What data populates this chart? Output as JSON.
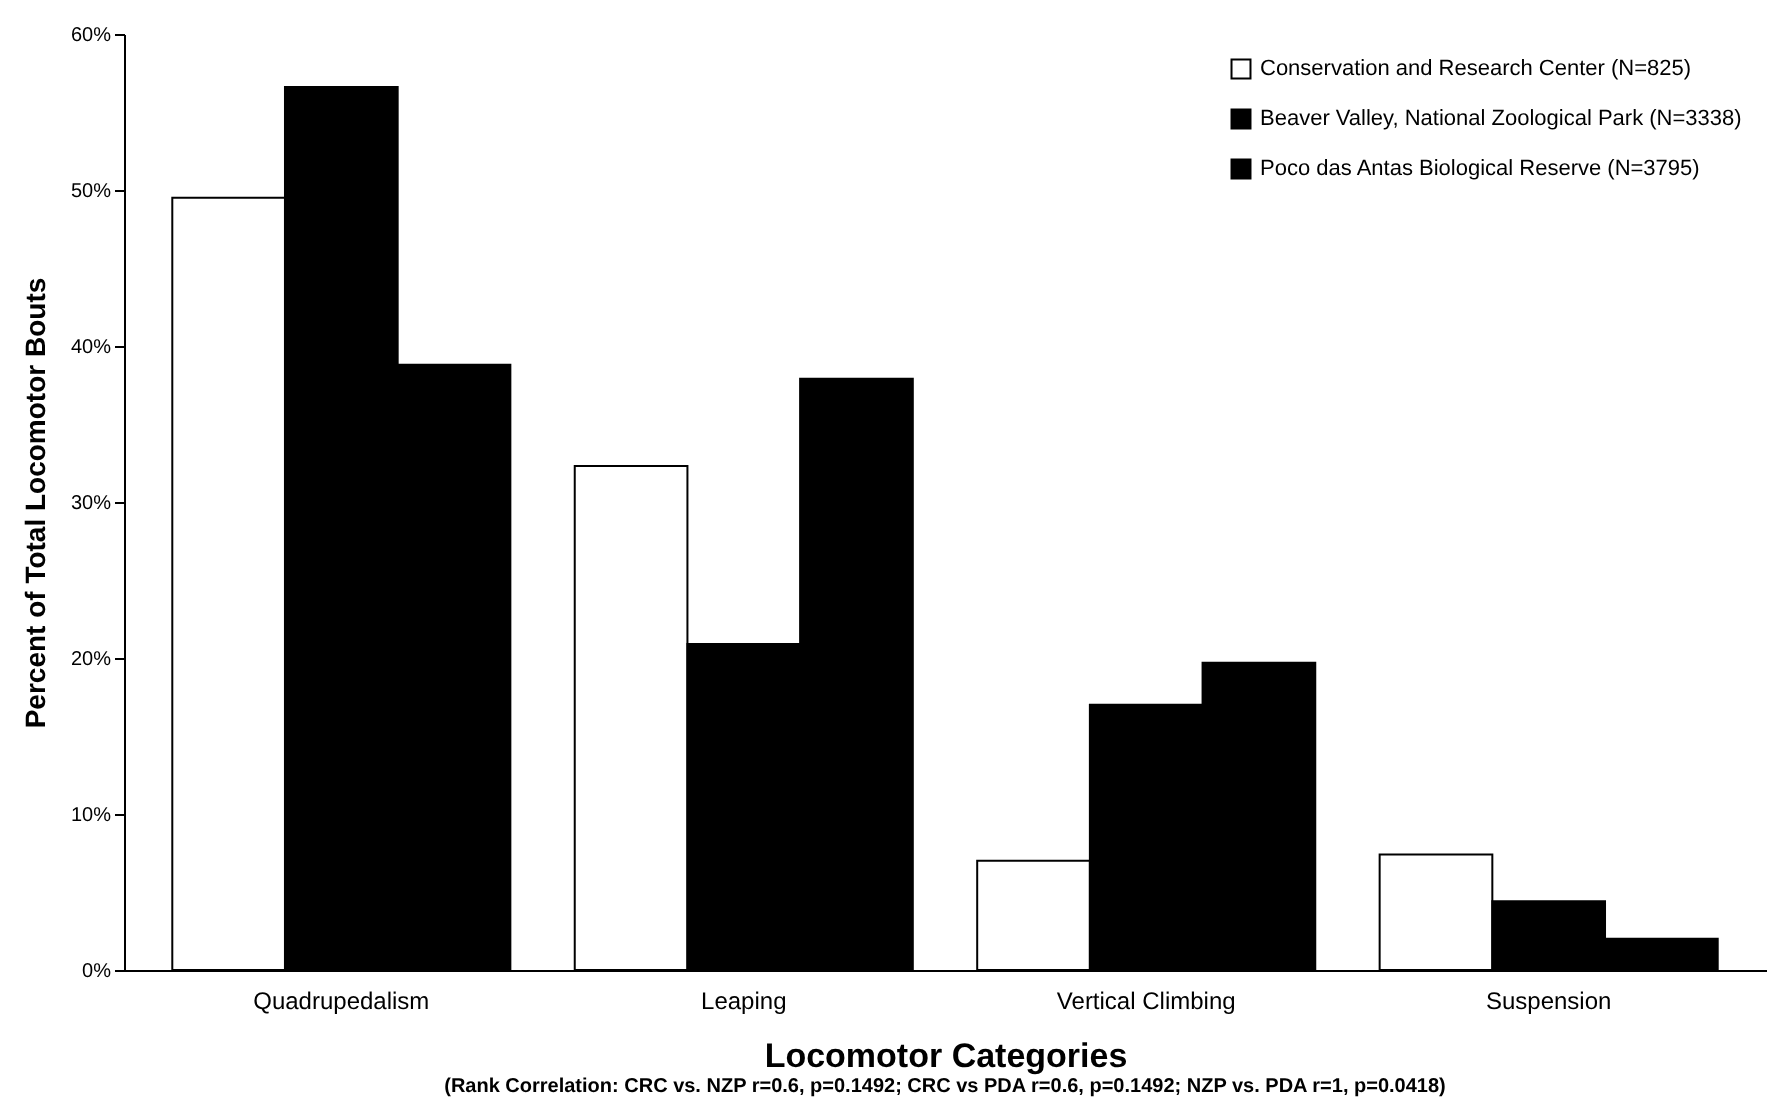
{
  "chart_data": {
    "type": "bar",
    "xlabel": "Locomotor Categories",
    "ylabel": "Percent of Total Locomotor Bouts",
    "annotations": [
      "(Rank Correlation: CRC vs. NZP r=0.6, p=0.1492; CRC vs  PDA r=0.6, p=0.1492; NZP vs. PDA r=1, p=0.0418)"
    ],
    "categories": [
      "Quadrupedalism",
      "Leaping",
      "Vertical Climbing",
      "Suspension"
    ],
    "series": [
      {
        "name": "Conservation and Research Center (N=825)",
        "color": "#ffffff",
        "values": [
          49.5,
          32.3,
          7.0,
          7.4
        ]
      },
      {
        "name": "Beaver Valley, National Zoological Park (N=3338)",
        "color": "#000000",
        "values": [
          56.6,
          20.9,
          17.0,
          4.4
        ]
      },
      {
        "name": "Poco das Antas Biological Reserve (N=3795)",
        "color": "#000000",
        "values": [
          38.8,
          37.9,
          19.7,
          2.0
        ]
      }
    ],
    "ylim": [
      0,
      60
    ],
    "yticks": [
      {
        "value": 0,
        "label": "0%"
      },
      {
        "value": 10,
        "label": "10%"
      },
      {
        "value": 20,
        "label": "20%"
      },
      {
        "value": 30,
        "label": "30%"
      },
      {
        "value": 40,
        "label": "40%"
      },
      {
        "value": 50,
        "label": "50%"
      },
      {
        "value": 60,
        "label": "60%"
      }
    ],
    "grid": false,
    "legend": "top right"
  }
}
